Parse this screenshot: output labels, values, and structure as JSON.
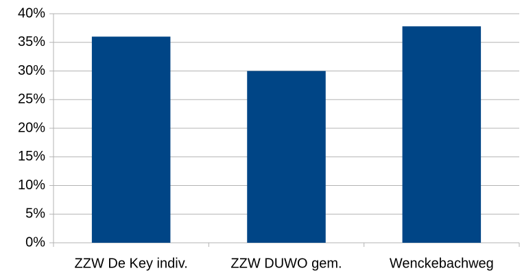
{
  "chart_data": {
    "type": "bar",
    "categories": [
      "ZZW De Key indiv.",
      "ZZW DUWO gem.",
      "Wenckebachweg"
    ],
    "values": [
      36,
      30,
      37.8
    ],
    "color": "#004586",
    "ylim": [
      0,
      40
    ],
    "yticks": [
      {
        "value": 0,
        "label": "0%"
      },
      {
        "value": 5,
        "label": "5%"
      },
      {
        "value": 10,
        "label": "10%"
      },
      {
        "value": 15,
        "label": "15%"
      },
      {
        "value": 20,
        "label": "20%"
      },
      {
        "value": 25,
        "label": "25%"
      },
      {
        "value": 30,
        "label": "30%"
      },
      {
        "value": 35,
        "label": "35%"
      },
      {
        "value": 40,
        "label": "40%"
      }
    ],
    "grid": true
  }
}
